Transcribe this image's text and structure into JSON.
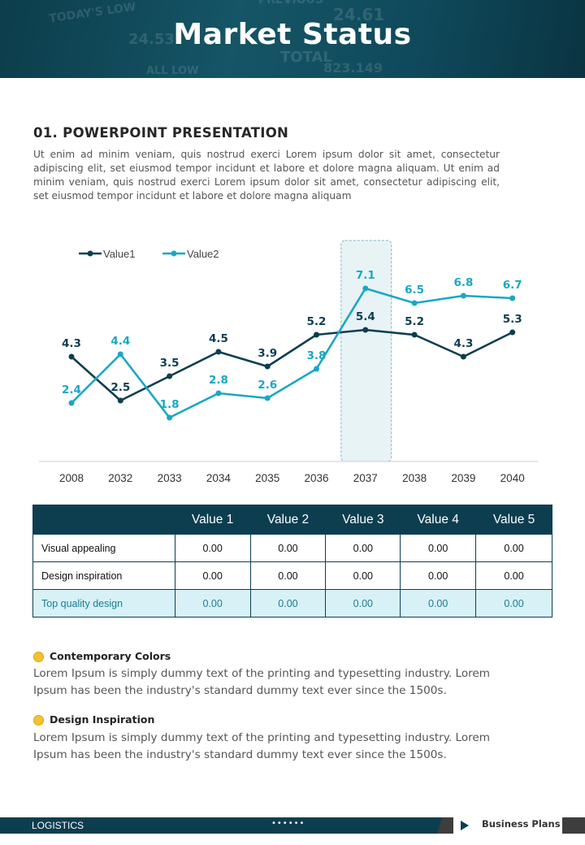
{
  "header": {
    "title": "Market Status",
    "background_ticker": [
      "TODAY'S LOW",
      "PREVIOUS",
      "24.61",
      "24.53",
      "TOTAL",
      "823.149",
      "ALL LOW"
    ]
  },
  "section": {
    "title": "01. POWERPOINT PRESENTATION",
    "body": "Ut enim ad minim veniam, quis nostrud exerci  Lorem ipsum dolor sit amet, consectetur adipiscing elit, set eiusmod tempor incidunt et labore et dolore magna aliquam. Ut enim ad minim veniam, quis nostrud exerci  Lorem ipsum dolor sit amet, consectetur adipiscing elit, set eiusmod tempor incidunt et labore et dolore magna aliquam"
  },
  "chart_data": {
    "type": "line",
    "categories": [
      "2008",
      "2032",
      "2033",
      "2034",
      "2035",
      "2036",
      "2037",
      "2038",
      "2039",
      "2040"
    ],
    "series": [
      {
        "name": "Value1",
        "color": "#0d3e50",
        "values": [
          4.3,
          2.5,
          3.5,
          4.5,
          3.9,
          5.2,
          5.4,
          5.2,
          4.3,
          5.3
        ]
      },
      {
        "name": "Value2",
        "color": "#1aa7c4",
        "values": [
          2.4,
          4.4,
          1.8,
          2.8,
          2.6,
          3.8,
          7.1,
          6.5,
          6.8,
          6.7
        ]
      }
    ],
    "highlight_category": "2037",
    "ylim": [
      0,
      8
    ],
    "legend": "top-left",
    "grid": false
  },
  "table": {
    "headers": [
      "",
      "Value 1",
      "Value 2",
      "Value 3",
      "Value 4",
      "Value 5"
    ],
    "rows": [
      {
        "label": "Visual appealing",
        "values": [
          "0.00",
          "0.00",
          "0.00",
          "0.00",
          "0.00"
        ]
      },
      {
        "label": "Design inspiration",
        "values": [
          "0.00",
          "0.00",
          "0.00",
          "0.00",
          "0.00"
        ]
      },
      {
        "label": "Top quality design",
        "values": [
          "0.00",
          "0.00",
          "0.00",
          "0.00",
          "0.00"
        ]
      }
    ]
  },
  "bullets": [
    {
      "title": "Contemporary Colors",
      "text": "Lorem Ipsum is simply dummy text of the printing and typesetting industry. Lorem Ipsum has been the industry's standard dummy text ever since the 1500s."
    },
    {
      "title": "Design Inspiration",
      "text": "Lorem Ipsum is simply dummy text of the printing and typesetting industry. Lorem Ipsum has been the industry's standard dummy text ever since the 1500s."
    }
  ],
  "footer": {
    "left": "LOGISTICS",
    "dots": "••••••",
    "right": "Business Plans"
  }
}
